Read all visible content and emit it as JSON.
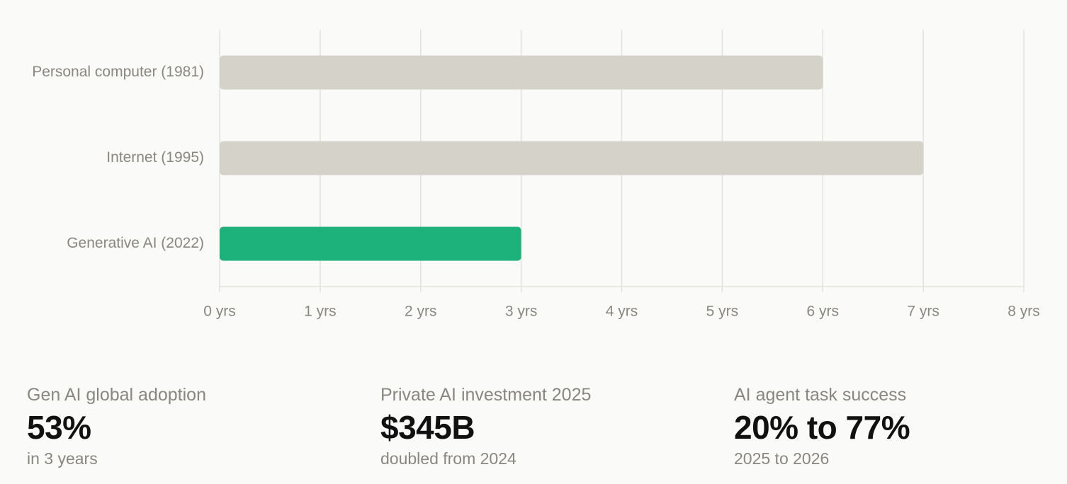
{
  "chart_data": {
    "type": "bar",
    "orientation": "horizontal",
    "categories": [
      "Personal computer (1981)",
      "Internet (1995)",
      "Generative AI (2022)"
    ],
    "values": [
      6,
      7,
      3
    ],
    "colors": [
      "#d5d2ca",
      "#d5d2ca",
      "#1db27b"
    ],
    "xlim": [
      0,
      8
    ],
    "xticks": [
      {
        "value": 0,
        "label": "0 yrs"
      },
      {
        "value": 1,
        "label": "1 yrs"
      },
      {
        "value": 2,
        "label": "2 yrs"
      },
      {
        "value": 3,
        "label": "3 yrs"
      },
      {
        "value": 4,
        "label": "4 yrs"
      },
      {
        "value": 5,
        "label": "5 yrs"
      },
      {
        "value": 6,
        "label": "6 yrs"
      },
      {
        "value": 7,
        "label": "7 yrs"
      },
      {
        "value": 8,
        "label": "8 yrs"
      }
    ],
    "grid": true
  },
  "stats": [
    {
      "label": "Gen AI global adoption",
      "value": "53%",
      "note": "in 3 years"
    },
    {
      "label": "Private AI investment 2025",
      "value": "$345B",
      "note": "doubled from 2024"
    },
    {
      "label": "AI agent task success",
      "value": "20% to 77%",
      "note": "2025 to 2026"
    }
  ]
}
